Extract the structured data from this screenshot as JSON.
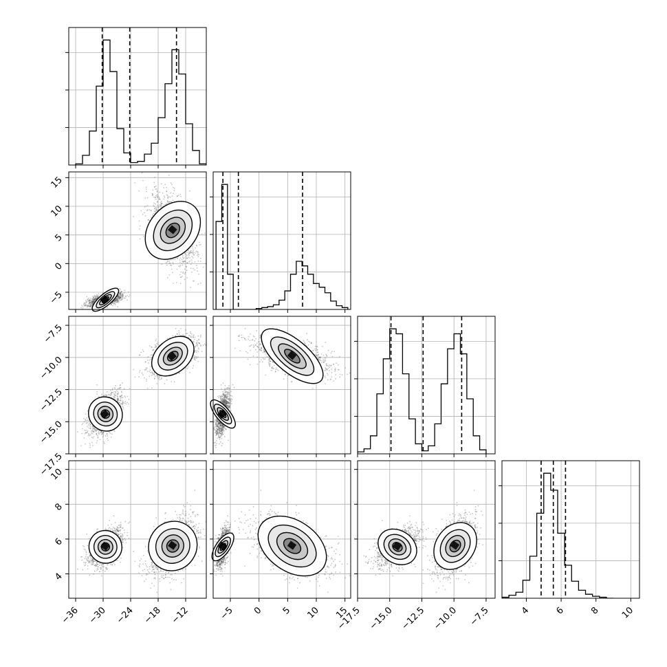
{
  "chart_data": {
    "type": "corner",
    "grid": true,
    "colors": {
      "line": "#000000",
      "points": "#555555",
      "grid": "#b0b0b0",
      "frame": "#000000"
    },
    "parameters": [
      {
        "ticks": [
          -36,
          -30,
          -24,
          -18,
          -12
        ],
        "range": [
          -37.5,
          -7.5
        ]
      },
      {
        "ticks": [
          -5,
          0,
          5,
          10,
          15
        ],
        "range": [
          -8,
          16
        ]
      },
      {
        "ticks": [
          -17.5,
          -15.0,
          -12.5,
          -10.0,
          -7.5
        ],
        "range": [
          -17.5,
          -6.8
        ]
      },
      {
        "ticks": [
          4,
          6,
          8,
          10
        ],
        "range": [
          2.6,
          10.5
        ]
      }
    ],
    "tick_labels": [
      [
        "−36",
        "−30",
        "−24",
        "−18",
        "−12"
      ],
      [
        "−5",
        "0",
        "5",
        "10",
        "15"
      ],
      [
        "−17.5",
        "−15.0",
        "−12.5",
        "−10.0",
        "−7.5"
      ],
      [
        "4",
        "6",
        "8",
        "10"
      ]
    ],
    "quantiles": [
      [
        -30.2,
        -24.2,
        -14.0
      ],
      [
        -6.3,
        -3.6,
        7.6
      ],
      [
        -14.9,
        -12.4,
        -9.4
      ],
      [
        4.85,
        5.55,
        6.25
      ]
    ],
    "histograms": [
      {
        "edges": [
          -36,
          -34.5,
          -33,
          -31.5,
          -30,
          -28.5,
          -27,
          -25.5,
          -24,
          -22.5,
          -21,
          -19.5,
          -18,
          -16.5,
          -15,
          -13.5,
          -12,
          -10.5,
          -9,
          -7.5
        ],
        "counts": [
          1,
          8,
          28,
          65,
          103,
          77,
          30,
          10,
          2,
          3,
          9,
          18,
          39,
          67,
          95,
          75,
          34,
          12,
          1
        ]
      },
      {
        "edges": [
          -7.5,
          -6.5,
          -5.5,
          -4.5,
          -3.5,
          -2.5,
          -1.5,
          -0.5,
          0.5,
          1.5,
          2.5,
          3.5,
          4.5,
          5.5,
          6.5,
          7.5,
          8.5,
          9.5,
          10.5,
          11.5,
          12.5,
          13.5,
          14.5,
          15.5
        ],
        "counts": [
          95,
          135,
          38,
          0,
          0,
          0,
          0,
          1,
          2,
          3,
          5,
          10,
          20,
          38,
          52,
          47,
          38,
          28,
          24,
          18,
          9,
          4,
          2
        ]
      },
      {
        "edges": [
          -17.5,
          -17,
          -16.5,
          -16,
          -15.5,
          -15,
          -14.5,
          -14,
          -13.5,
          -13,
          -12.5,
          -12,
          -11.5,
          -11,
          -10.5,
          -10,
          -9.5,
          -9,
          -8.5,
          -8,
          -7.5
        ],
        "counts": [
          2,
          5,
          18,
          60,
          95,
          125,
          120,
          80,
          35,
          10,
          3,
          8,
          30,
          70,
          105,
          120,
          100,
          55,
          18,
          4
        ]
      },
      {
        "edges": [
          2.6,
          3.0,
          3.4,
          3.8,
          4.2,
          4.6,
          5.0,
          5.4,
          5.8,
          6.2,
          6.6,
          7.0,
          7.4,
          7.8,
          8.2,
          8.6,
          9.0
        ],
        "counts": [
          1,
          3,
          6,
          18,
          42,
          85,
          125,
          108,
          65,
          33,
          17,
          8,
          4,
          2,
          1,
          0
        ]
      }
    ],
    "clusters": [
      {
        "center": [
          -29.5,
          -6.3,
          -14.4,
          5.55
        ],
        "sd": [
          1.8,
          0.6,
          0.8,
          0.55
        ],
        "weight": 0.5
      },
      {
        "center": [
          -14.8,
          5.8,
          -9.9,
          5.6
        ],
        "sd": [
          2.6,
          3.3,
          0.75,
          0.85
        ],
        "weight": 0.5
      }
    ]
  }
}
